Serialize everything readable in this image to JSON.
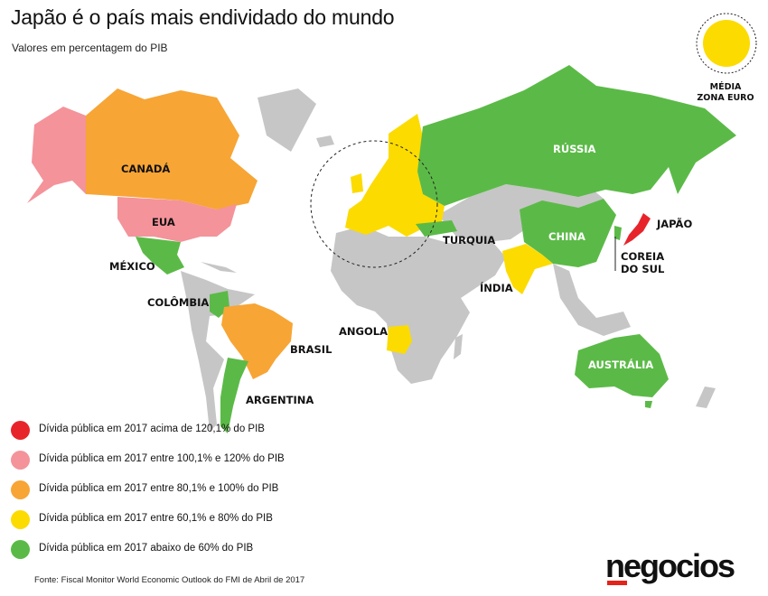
{
  "header": {
    "title": "Japão é o país mais endividado do mundo",
    "subtitle": "Valores em percentagem do PIB"
  },
  "colors": {
    "above_120": "#e8242b",
    "100_120": "#f4939a",
    "80_100": "#f7a535",
    "60_80": "#fcdb00",
    "below_60": "#5bba47",
    "no_data": "#c6c6c6"
  },
  "euro_zone": {
    "label_line1": "MÉDIA",
    "label_line2": "ZONA EURO",
    "category": "60_80"
  },
  "countries": {
    "canada": "CANADÁ",
    "eua": "EUA",
    "mexico": "MÉXICO",
    "colombia": "COLÔMBIA",
    "brasil": "BRASIL",
    "argentina": "ARGENTINA",
    "angola": "ANGOLA",
    "turquia": "TURQUIA",
    "russia": "RÚSSIA",
    "china": "CHINA",
    "india": "ÍNDIA",
    "japao": "JAPÃO",
    "coreia_line1": "COREIA",
    "coreia_line2": "DO SUL",
    "australia": "AUSTRÁLIA"
  },
  "legend": [
    {
      "color_key": "above_120",
      "text": "Dívida pública em 2017 acima de 120,1% do PIB"
    },
    {
      "color_key": "100_120",
      "text": "Dívida pública em 2017 entre 100,1% e 120% do PIB"
    },
    {
      "color_key": "80_100",
      "text": "Dívida pública em 2017 entre 80,1% e 100% do PIB"
    },
    {
      "color_key": "60_80",
      "text": "Dívida pública em 2017 entre 60,1% e 80% do PIB"
    },
    {
      "color_key": "below_60",
      "text": "Dívida pública em 2017 abaixo de 60% do PIB"
    }
  ],
  "footer": {
    "source": "Fonte: Fiscal Monitor World Economic Outlook do FMI de Abril de 2017",
    "logo": "negocios"
  }
}
